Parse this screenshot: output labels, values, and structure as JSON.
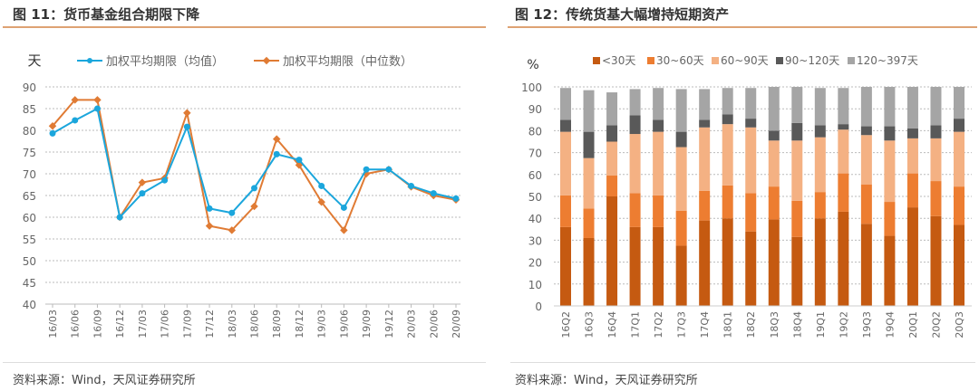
{
  "left": {
    "title": "图 11：货币基金组合期限下降",
    "source": "资料来源：Wind，天风证券研究所"
  },
  "right": {
    "title": "图 12：传统货基大幅增持短期资产",
    "source": "资料来源：Wind，天风证券研究所"
  },
  "chart_data": [
    {
      "type": "line",
      "ylabel": "天",
      "ylim": [
        40,
        90
      ],
      "yticks": [
        40,
        45,
        50,
        55,
        60,
        65,
        70,
        75,
        80,
        85,
        90
      ],
      "grid": true,
      "legend": "top",
      "categories": [
        "16/03",
        "16/06",
        "16/09",
        "16/12",
        "17/03",
        "17/06",
        "17/09",
        "17/12",
        "18/03",
        "18/06",
        "18/09",
        "18/12",
        "19/03",
        "19/06",
        "19/09",
        "19/12",
        "20/03",
        "20/06",
        "20/09"
      ],
      "series": [
        {
          "name": "加权平均期限（均值）",
          "color": "#1ba6dc",
          "marker": "circle",
          "values": [
            79.3,
            82.3,
            85,
            60,
            65.5,
            68.5,
            80.8,
            62,
            61,
            66.7,
            74.5,
            73.2,
            67.2,
            62.2,
            71,
            71,
            67.2,
            65.5,
            64.3
          ]
        },
        {
          "name": "加权平均期限（中位数）",
          "color": "#e07b34",
          "marker": "diamond",
          "values": [
            81,
            87,
            87,
            60,
            68,
            69,
            84,
            58,
            57,
            62.5,
            78,
            72,
            63.5,
            57,
            70,
            71,
            67,
            65,
            64
          ]
        }
      ]
    },
    {
      "type": "bar",
      "stacked": true,
      "ylabel": "%",
      "ylim": [
        0,
        100
      ],
      "yticks": [
        0,
        10,
        20,
        30,
        40,
        50,
        60,
        70,
        80,
        90,
        100
      ],
      "grid": true,
      "legend": "top",
      "categories": [
        "16Q2",
        "16Q3",
        "16Q4",
        "17Q1",
        "17Q2",
        "17Q3",
        "17Q4",
        "18Q1",
        "18Q2",
        "18Q3",
        "18Q4",
        "19Q1",
        "19Q2",
        "19Q3",
        "19Q4",
        "20Q1",
        "20Q2",
        "20Q3"
      ],
      "series": [
        {
          "name": "<30天",
          "color": "#c55a11",
          "values": [
            36,
            31,
            50,
            36,
            36,
            27.5,
            39,
            40,
            34,
            39.5,
            31.5,
            40,
            43,
            37.5,
            32,
            45,
            41,
            37
          ]
        },
        {
          "name": "30~60天",
          "color": "#ed7d31",
          "values": [
            14.5,
            13.5,
            9.5,
            15.5,
            14.5,
            16,
            13.5,
            15,
            17.5,
            15,
            16.5,
            12,
            17.5,
            18,
            15.5,
            15.5,
            16,
            17.5
          ]
        },
        {
          "name": "60~90天",
          "color": "#f4b183",
          "values": [
            29,
            23,
            15.5,
            27,
            29,
            29,
            29,
            28,
            30,
            21,
            27.5,
            25,
            20,
            22.5,
            28,
            16,
            19.5,
            25
          ]
        },
        {
          "name": "90~120天",
          "color": "#595959",
          "values": [
            5.5,
            12,
            7.5,
            8.5,
            5.5,
            7,
            3.5,
            4.5,
            4,
            4.5,
            8,
            5.5,
            2.5,
            4,
            6.5,
            4.5,
            6,
            6
          ]
        },
        {
          "name": "120~397天",
          "color": "#a5a5a5",
          "values": [
            14.5,
            19,
            15,
            12,
            14.5,
            19.5,
            14,
            12,
            14,
            20,
            16.5,
            17,
            16.5,
            18,
            18,
            19,
            17.5,
            14.5
          ]
        }
      ]
    }
  ]
}
